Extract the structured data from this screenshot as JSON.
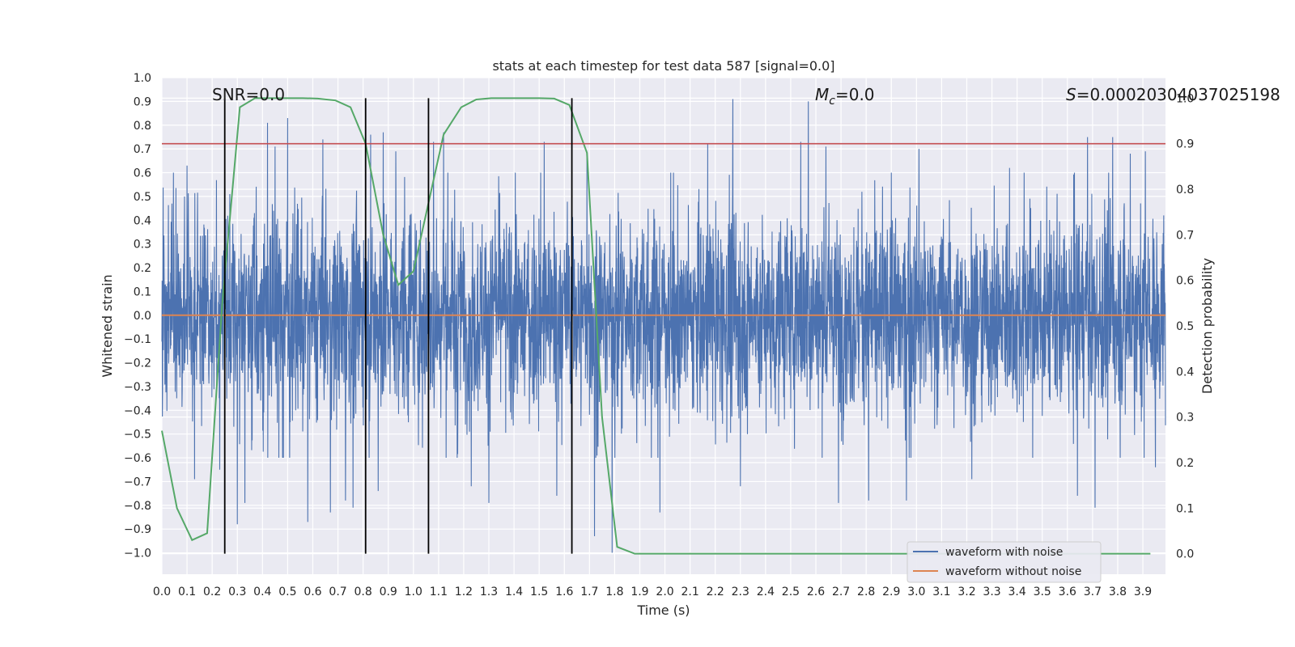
{
  "chart_data": {
    "type": "line",
    "title": "stats at each timestep for test data 587 [signal=0.0]",
    "xlabel": "Time (s)",
    "ylabel": "Whitened strain",
    "y2label": "Detection probability",
    "xlim": [
      0.0,
      3.99
    ],
    "ylim": [
      -1.09,
      1.0
    ],
    "y2lim": [
      -0.045,
      1.045
    ],
    "x_ticks": [
      "0.0",
      "0.1",
      "0.2",
      "0.3",
      "0.4",
      "0.5",
      "0.6",
      "0.7",
      "0.8",
      "0.9",
      "1.0",
      "1.1",
      "1.2",
      "1.3",
      "1.4",
      "1.5",
      "1.6",
      "1.7",
      "1.8",
      "1.9",
      "2.0",
      "2.1",
      "2.2",
      "2.3",
      "2.4",
      "2.5",
      "2.6",
      "2.7",
      "2.8",
      "2.9",
      "3.0",
      "3.1",
      "3.2",
      "3.3",
      "3.4",
      "3.5",
      "3.6",
      "3.7",
      "3.8",
      "3.9"
    ],
    "y_ticks": [
      "1.0",
      "0.9",
      "0.8",
      "0.7",
      "0.6",
      "0.5",
      "0.4",
      "0.3",
      "0.2",
      "0.1",
      "0.0",
      "−0.1",
      "−0.2",
      "−0.3",
      "−0.4",
      "−0.5",
      "−0.6",
      "−0.7",
      "−0.8",
      "−0.9",
      "−1.0"
    ],
    "y2_ticks": [
      "0.0",
      "0.1",
      "0.2",
      "0.3",
      "0.4",
      "0.5",
      "0.6",
      "0.7",
      "0.8",
      "0.9",
      "1.0"
    ],
    "grid": true,
    "annotations": {
      "snr": "SNR=0.0",
      "mc_symbol": "M",
      "mc_sub": "c",
      "mc_value": "=0.0",
      "s_symbol": "S",
      "s_value": "=0.00020304037025198"
    },
    "noise_series": {
      "name": "waveform with noise",
      "color": "#4c72b0",
      "sample_rate": 1000,
      "envelope": 0.33,
      "spikes": [
        {
          "t": 0.04,
          "v": 0.47
        },
        {
          "t": 0.1,
          "v": 0.63
        },
        {
          "t": 0.13,
          "v": -0.69
        },
        {
          "t": 0.23,
          "v": -0.65
        },
        {
          "t": 0.27,
          "v": 0.51
        },
        {
          "t": 0.3,
          "v": -0.88
        },
        {
          "t": 0.33,
          "v": -0.79
        },
        {
          "t": 0.42,
          "v": 0.81
        },
        {
          "t": 0.45,
          "v": 0.71
        },
        {
          "t": 0.5,
          "v": 0.83
        },
        {
          "t": 0.58,
          "v": -0.87
        },
        {
          "t": 0.64,
          "v": 0.74
        },
        {
          "t": 0.67,
          "v": -0.83
        },
        {
          "t": 0.73,
          "v": -0.78
        },
        {
          "t": 0.76,
          "v": -0.81
        },
        {
          "t": 0.83,
          "v": 0.76
        },
        {
          "t": 0.86,
          "v": -0.74
        },
        {
          "t": 0.88,
          "v": 0.77
        },
        {
          "t": 0.93,
          "v": 0.69
        },
        {
          "t": 1.08,
          "v": 0.73
        },
        {
          "t": 1.12,
          "v": 0.77
        },
        {
          "t": 1.23,
          "v": -0.72
        },
        {
          "t": 1.3,
          "v": -0.79
        },
        {
          "t": 1.52,
          "v": 0.73
        },
        {
          "t": 1.57,
          "v": -0.76
        },
        {
          "t": 1.69,
          "v": 0.68
        },
        {
          "t": 1.72,
          "v": -0.93
        },
        {
          "t": 1.79,
          "v": -1.0
        },
        {
          "t": 1.98,
          "v": -0.83
        },
        {
          "t": 2.17,
          "v": 0.72
        },
        {
          "t": 2.27,
          "v": 0.91
        },
        {
          "t": 2.3,
          "v": -0.72
        },
        {
          "t": 2.54,
          "v": 0.73
        },
        {
          "t": 2.57,
          "v": 0.9
        },
        {
          "t": 2.64,
          "v": 0.71
        },
        {
          "t": 2.69,
          "v": -0.79
        },
        {
          "t": 2.81,
          "v": -0.78
        },
        {
          "t": 2.96,
          "v": -0.78
        },
        {
          "t": 3.01,
          "v": 0.7
        },
        {
          "t": 3.22,
          "v": -0.69
        },
        {
          "t": 3.37,
          "v": 0.62
        },
        {
          "t": 3.64,
          "v": -0.76
        },
        {
          "t": 3.68,
          "v": 0.75
        },
        {
          "t": 3.71,
          "v": -0.81
        },
        {
          "t": 3.78,
          "v": 0.75
        },
        {
          "t": 3.85,
          "v": 0.68
        },
        {
          "t": 3.91,
          "v": 0.69
        },
        {
          "t": 3.95,
          "v": -0.64
        }
      ]
    },
    "clean_series": {
      "name": "waveform without noise",
      "color": "#dd8452",
      "value": 0.0
    },
    "probability_series": {
      "color": "#55a868",
      "x": [
        0.0,
        0.06,
        0.12,
        0.18,
        0.24,
        0.31,
        0.37,
        0.43,
        0.5,
        0.56,
        0.62,
        0.69,
        0.75,
        0.81,
        0.88,
        0.94,
        1.0,
        1.06,
        1.12,
        1.19,
        1.25,
        1.31,
        1.38,
        1.44,
        1.5,
        1.56,
        1.62,
        1.69,
        1.75,
        1.81,
        1.88,
        1.94,
        2.0,
        2.5,
        3.0,
        3.5,
        3.93
      ],
      "y": [
        0.27,
        0.1,
        0.03,
        0.045,
        0.55,
        0.98,
        1.0,
        1.0,
        1.0,
        1.0,
        0.999,
        0.995,
        0.98,
        0.9,
        0.7,
        0.59,
        0.62,
        0.77,
        0.92,
        0.98,
        0.997,
        1.0,
        1.0,
        1.0,
        1.0,
        0.999,
        0.985,
        0.88,
        0.3,
        0.015,
        0.0,
        0.0,
        0.0,
        0.0,
        0.0,
        0.0,
        0.0
      ]
    },
    "threshold": {
      "color": "#c44e52",
      "value": 0.9
    },
    "vlines": [
      0.25,
      0.81,
      1.06,
      1.63
    ],
    "vline_color": "#000000",
    "legend": {
      "position": "bottom-right",
      "entries": [
        {
          "label": "waveform with noise",
          "color": "#4c72b0"
        },
        {
          "label": "waveform without noise",
          "color": "#dd8452"
        }
      ]
    }
  }
}
